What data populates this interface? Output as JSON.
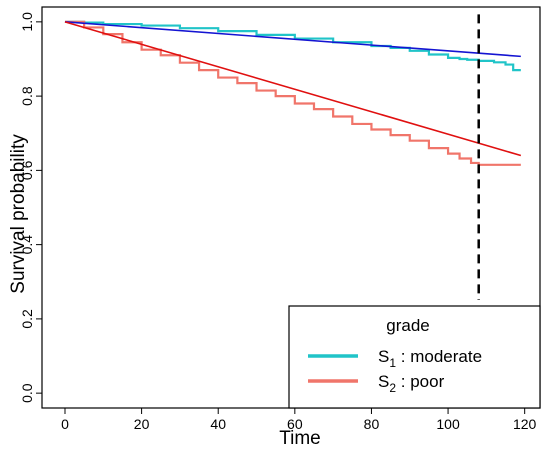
{
  "chart_data": {
    "type": "line",
    "xlabel": "Time",
    "ylabel": "Survival probability",
    "xlim": [
      -6,
      124
    ],
    "ylim": [
      -0.04,
      1.04
    ],
    "x_ticks": [
      0,
      20,
      40,
      60,
      80,
      100,
      120
    ],
    "y_ticks": [
      0.0,
      0.2,
      0.4,
      0.6,
      0.8,
      1.0
    ],
    "x_tick_labels": [
      "0",
      "20",
      "40",
      "60",
      "80",
      "100",
      "120"
    ],
    "y_tick_labels": [
      "0.0",
      "0.2",
      "0.4",
      "0.6",
      "0.8",
      "1.0"
    ],
    "vline_x": 108,
    "legend": {
      "title": "grade",
      "position": "bottom-right",
      "entries": [
        {
          "base": "S",
          "sub": "1",
          "text": " : moderate",
          "color": "#20C4C8"
        },
        {
          "base": "S",
          "sub": "2",
          "text": " : poor",
          "color": "#F0756A"
        }
      ]
    },
    "series": [
      {
        "color": "#20C4C8",
        "style": "step",
        "x": [
          0,
          5,
          10,
          20,
          30,
          40,
          50,
          60,
          70,
          80,
          85,
          90,
          95,
          100,
          103,
          105,
          108,
          112,
          115,
          117,
          119
        ],
        "y": [
          1.0,
          0.998,
          0.994,
          0.99,
          0.983,
          0.975,
          0.965,
          0.955,
          0.945,
          0.935,
          0.93,
          0.922,
          0.912,
          0.903,
          0.9,
          0.898,
          0.895,
          0.891,
          0.885,
          0.87,
          0.87
        ]
      },
      {
        "color": "#F0756A",
        "style": "step",
        "x": [
          0,
          5,
          10,
          15,
          20,
          25,
          30,
          35,
          40,
          45,
          50,
          55,
          60,
          65,
          70,
          75,
          80,
          85,
          90,
          95,
          100,
          103,
          106,
          108,
          119
        ],
        "y": [
          1.0,
          0.985,
          0.967,
          0.945,
          0.925,
          0.91,
          0.89,
          0.87,
          0.85,
          0.835,
          0.815,
          0.8,
          0.78,
          0.765,
          0.745,
          0.725,
          0.71,
          0.695,
          0.68,
          0.66,
          0.645,
          0.632,
          0.62,
          0.615,
          0.615
        ]
      },
      {
        "color": "#1414D2",
        "style": "line",
        "x": [
          0,
          119
        ],
        "y": [
          1.0,
          0.907
        ]
      },
      {
        "color": "#E01010",
        "style": "line",
        "x": [
          0,
          119
        ],
        "y": [
          1.0,
          0.64
        ]
      }
    ]
  }
}
